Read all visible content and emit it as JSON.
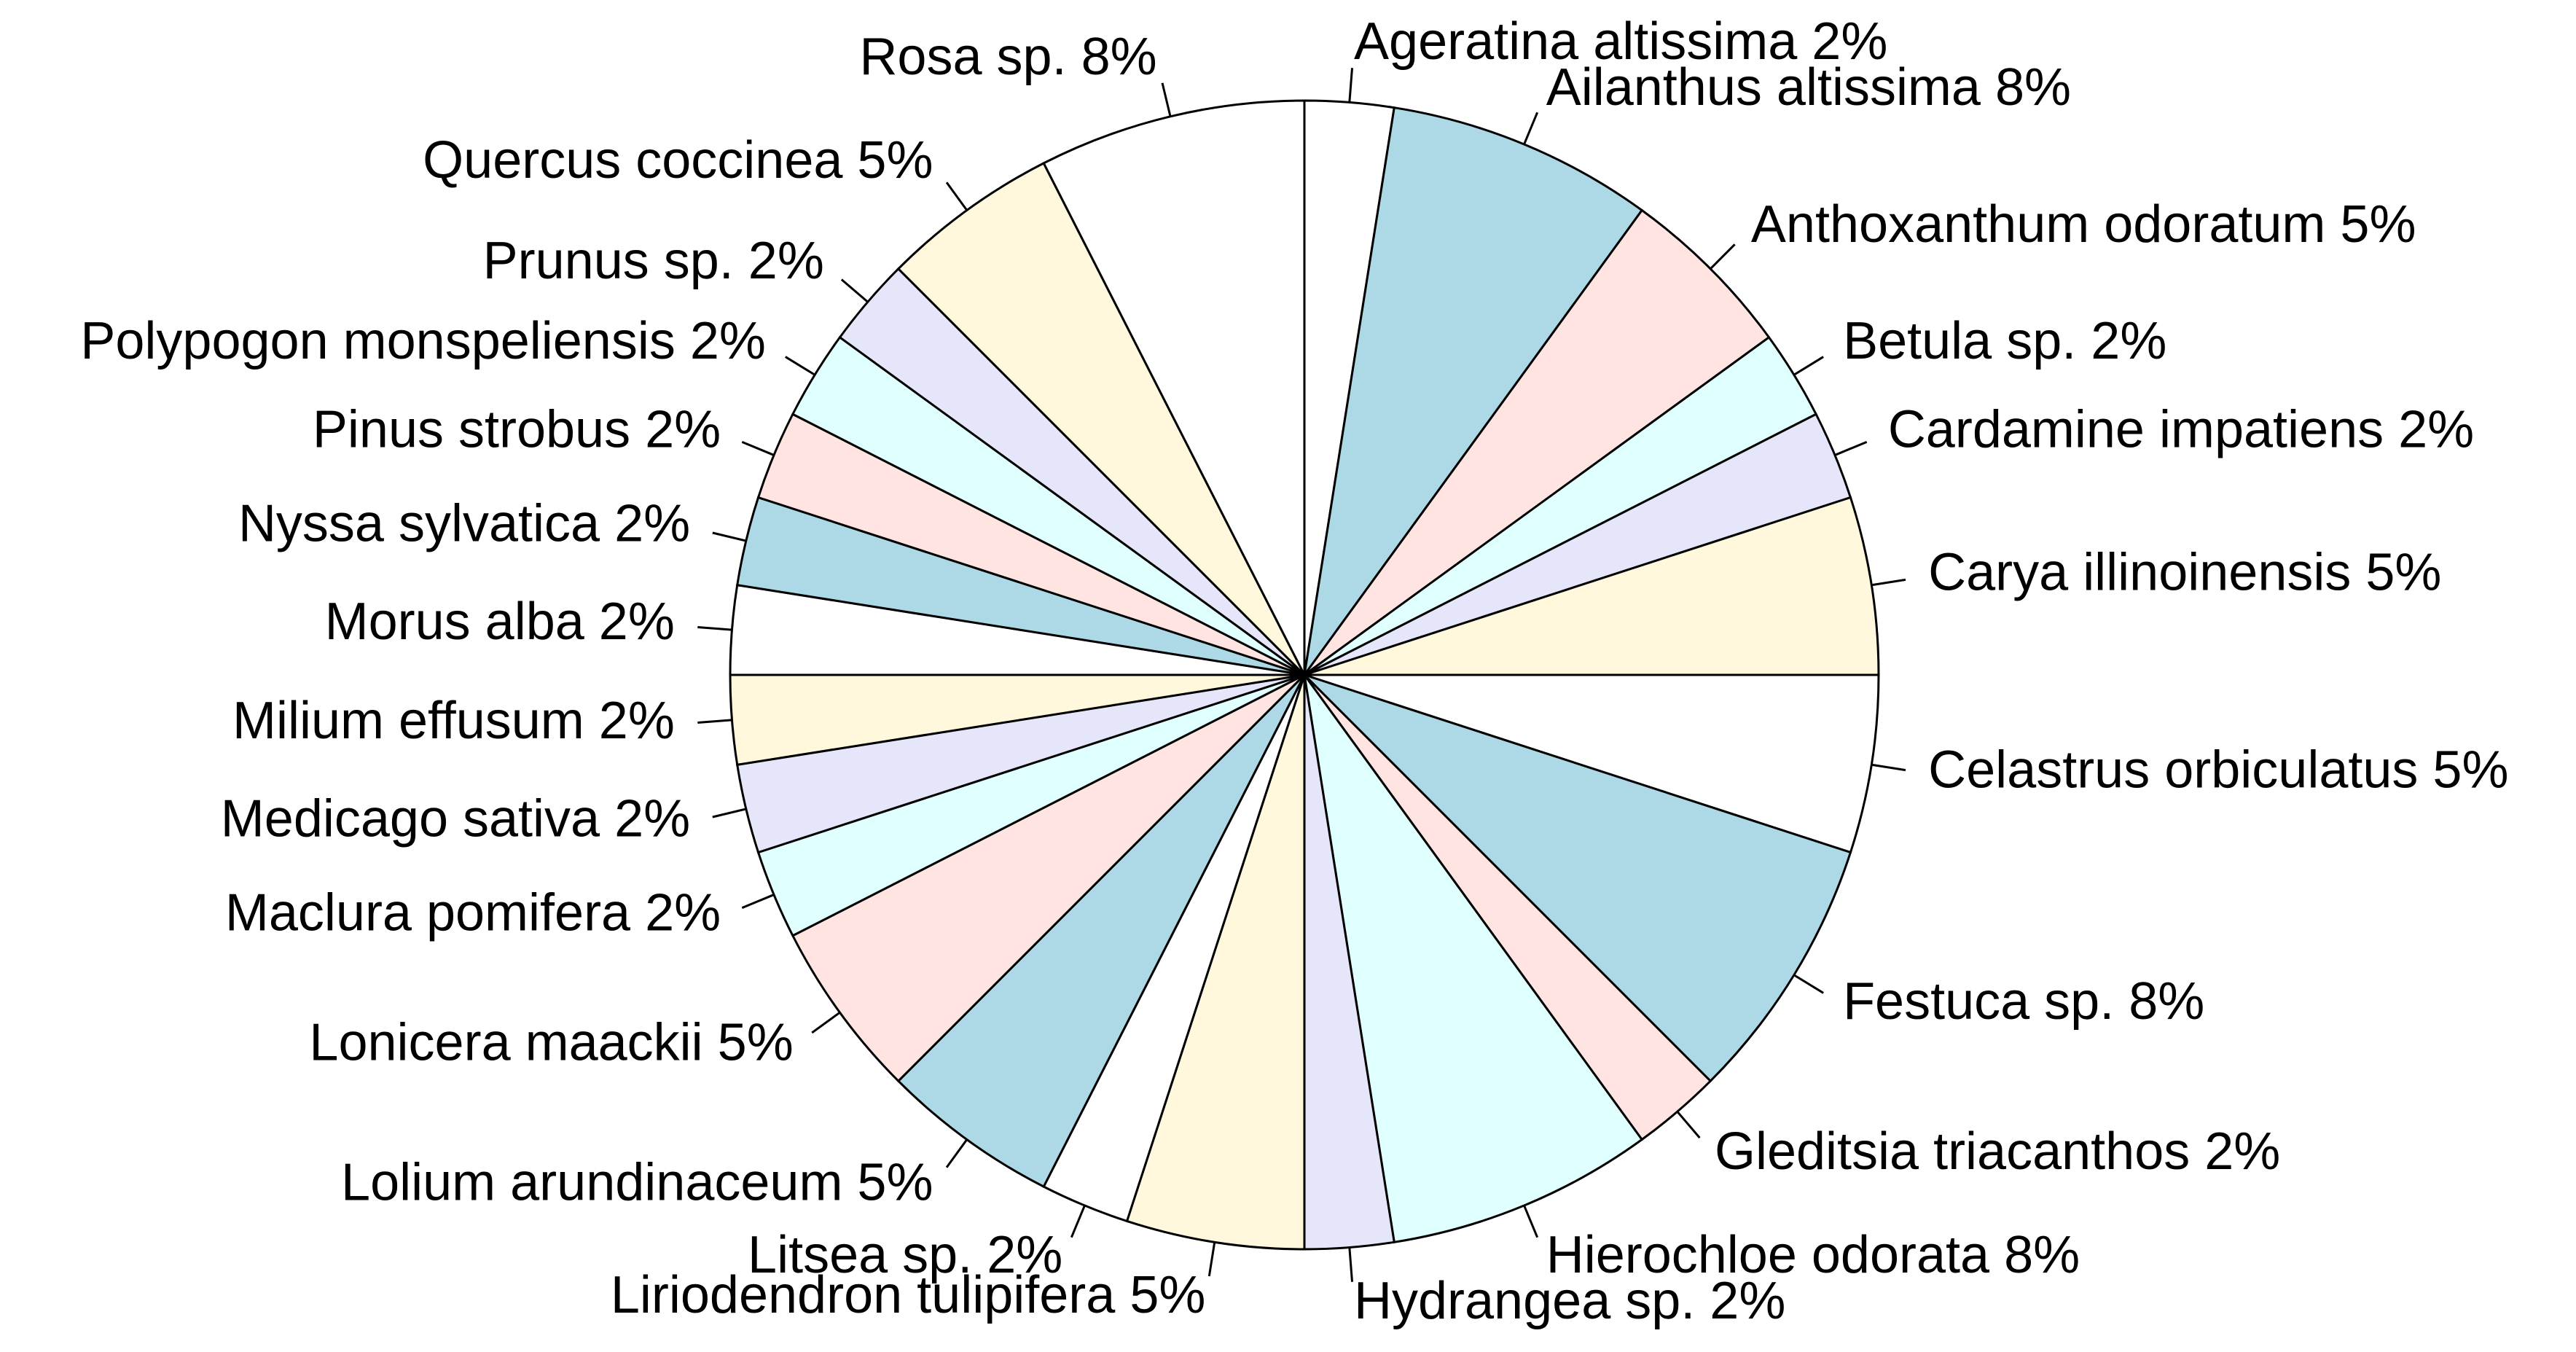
{
  "chart_data": {
    "type": "pie",
    "title": "",
    "start": "clockwise from 12 o'clock",
    "slices": [
      {
        "label": "Ageratina altissima 2%",
        "value": 1,
        "color": "#ffffff"
      },
      {
        "label": "Ailanthus altissima 8%",
        "value": 3,
        "color": "#add8e6"
      },
      {
        "label": "Anthoxanthum odoratum 5%",
        "value": 2,
        "color": "#ffe4e1"
      },
      {
        "label": "Betula sp. 2%",
        "value": 1,
        "color": "#e0ffff"
      },
      {
        "label": "Cardamine impatiens 2%",
        "value": 1,
        "color": "#e6e6fa"
      },
      {
        "label": "Carya illinoinensis 5%",
        "value": 2,
        "color": "#fff8dc"
      },
      {
        "label": "Celastrus orbiculatus 5%",
        "value": 2,
        "color": "#ffffff"
      },
      {
        "label": "Festuca sp. 8%",
        "value": 3,
        "color": "#add8e6"
      },
      {
        "label": "Gleditsia triacanthos 2%",
        "value": 1,
        "color": "#ffe4e1"
      },
      {
        "label": "Hierochloe odorata 8%",
        "value": 3,
        "color": "#e0ffff"
      },
      {
        "label": "Hydrangea sp. 2%",
        "value": 1,
        "color": "#e6e6fa"
      },
      {
        "label": "Liriodendron tulipifera 5%",
        "value": 2,
        "color": "#fff8dc"
      },
      {
        "label": "Litsea sp. 2%",
        "value": 1,
        "color": "#ffffff"
      },
      {
        "label": "Lolium arundinaceum 5%",
        "value": 2,
        "color": "#add8e6"
      },
      {
        "label": "Lonicera maackii 5%",
        "value": 2,
        "color": "#ffe4e1"
      },
      {
        "label": "Maclura pomifera 2%",
        "value": 1,
        "color": "#e0ffff"
      },
      {
        "label": "Medicago sativa 2%",
        "value": 1,
        "color": "#e6e6fa"
      },
      {
        "label": "Milium effusum  2%",
        "value": 1,
        "color": "#fff8dc"
      },
      {
        "label": "Morus alba 2%",
        "value": 1,
        "color": "#ffffff"
      },
      {
        "label": "Nyssa sylvatica 2%",
        "value": 1,
        "color": "#add8e6"
      },
      {
        "label": "Pinus strobus 2%",
        "value": 1,
        "color": "#ffe4e1"
      },
      {
        "label": "Polypogon monspeliensis 2%",
        "value": 1,
        "color": "#e0ffff"
      },
      {
        "label": "Prunus sp. 2%",
        "value": 1,
        "color": "#e6e6fa"
      },
      {
        "label": "Quercus coccinea 5%",
        "value": 2,
        "color": "#fff8dc"
      },
      {
        "label": "Rosa sp. 8%",
        "value": 3,
        "color": "#ffffff"
      }
    ]
  }
}
